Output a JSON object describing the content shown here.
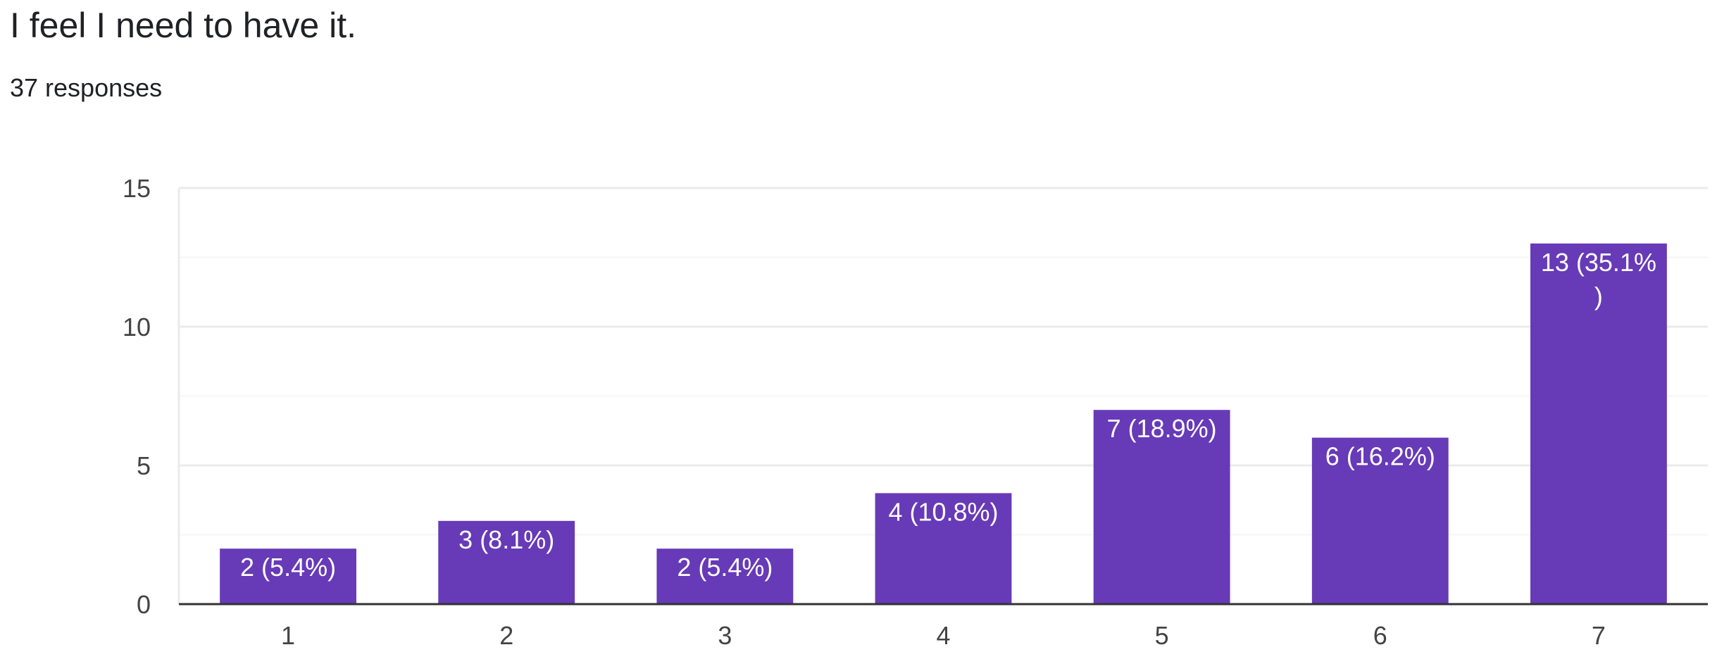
{
  "question": {
    "title": "I feel I need to have it.",
    "responses": "37 responses"
  },
  "chart_data": {
    "type": "bar",
    "categories": [
      "1",
      "2",
      "3",
      "4",
      "5",
      "6",
      "7"
    ],
    "values": [
      2,
      3,
      2,
      4,
      7,
      6,
      13
    ],
    "data_labels": [
      [
        "2 (5.4%)"
      ],
      [
        "3 (8.1%)"
      ],
      [
        "2 (5.4%)"
      ],
      [
        "4 (10.8%)"
      ],
      [
        "7 (18.9%)"
      ],
      [
        "6 (16.2%)"
      ],
      [
        "13 (35.1%",
        ")"
      ]
    ],
    "yticks": [
      0,
      5,
      10,
      15
    ],
    "ylim": [
      0,
      15
    ],
    "grid": true,
    "bar_color": "#673ab7",
    "gridline_color": "#ebebeb",
    "minor_gridline_color": "#f5f5f5",
    "axis_color": "#333333"
  }
}
